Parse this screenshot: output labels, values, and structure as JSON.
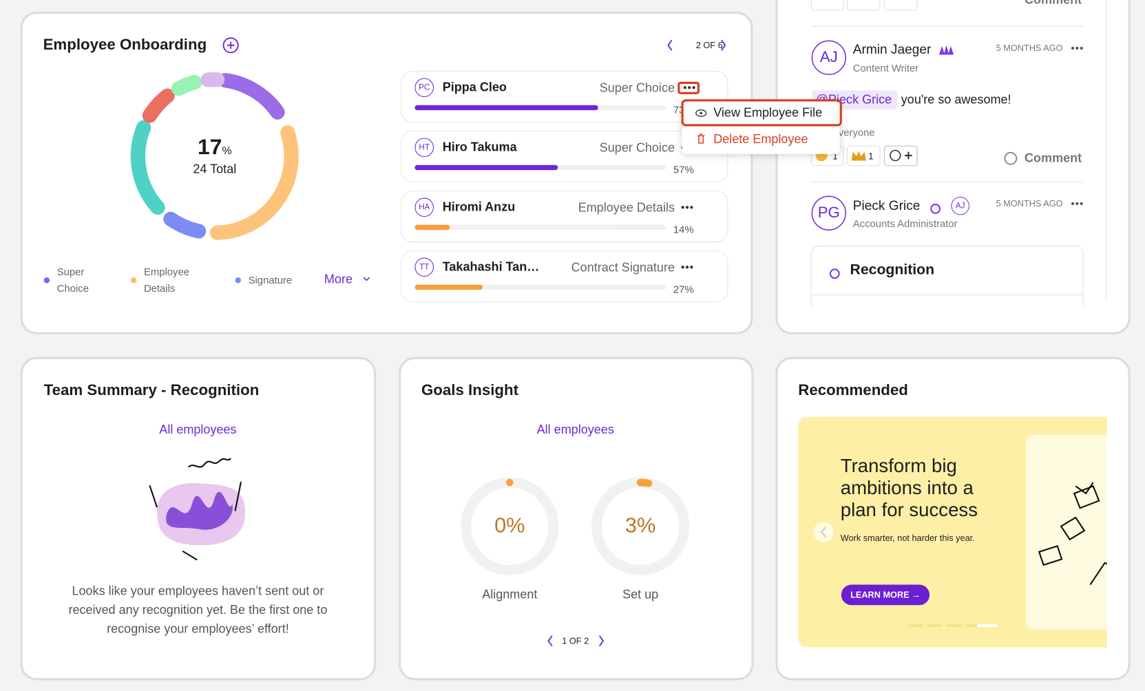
{
  "onboarding": {
    "title": "Employee Onboarding",
    "pager": "2 OF 6",
    "center_value": "17",
    "center_unit": "%",
    "center_caption": "24 Total",
    "legend": [
      {
        "label": "Super Choice",
        "color": "#8b5cf6"
      },
      {
        "label": "Employee Details",
        "color": "#fbbf6a"
      },
      {
        "label": "Signature",
        "color": "#7c8cf0"
      }
    ],
    "more": "More",
    "employees": [
      {
        "initials": "PC",
        "name": "Pippa Cleo",
        "stage": "Super Choice",
        "progress": "73%",
        "color": "#6d28d9"
      },
      {
        "initials": "HT",
        "name": "Hiro Takuma",
        "stage": "Super Choice",
        "progress": "57%",
        "color": "#6d28d9"
      },
      {
        "initials": "HA",
        "name": "Hiromi Anzu",
        "stage": "Employee Details",
        "progress": "14%",
        "color": "#f5a03c"
      },
      {
        "initials": "TT",
        "name": "Takahashi Tan…",
        "stage": "Contract Signature",
        "progress": "27%",
        "color": "#f5a03c"
      }
    ],
    "menu": [
      "View Employee File",
      "Delete Employee"
    ]
  },
  "feed": {
    "top_comment": "Comment",
    "post": {
      "initials": "AJ",
      "name": "Armin Jaeger",
      "role": "Content Writer",
      "time": "5 MONTHS AGO",
      "mention": "@Pieck Grice",
      "message": "you're so awesome!",
      "visibility": "Visible to everyone",
      "reactions": [
        "1",
        "1"
      ],
      "comment": "Comment"
    },
    "next": {
      "initials": "PG",
      "name": "Pieck Grice",
      "tag": "AJ",
      "role": "Accounts Administrator",
      "time": "5 MONTHS AGO"
    },
    "card_title": "Recognition"
  },
  "team_summary": {
    "title": "Team Summary - Recognition",
    "filter": "All employees",
    "message": "Looks like your employees haven’t sent out or received any recognition yet. Be the first one to recognise your employees’ effort!"
  },
  "goals": {
    "title": "Goals Insight",
    "filter": "All employees",
    "gauges": [
      {
        "value": "0%",
        "label": "Alignment"
      },
      {
        "value": "3%",
        "label": "Set up"
      }
    ],
    "pager": "1 OF 2"
  },
  "recommended": {
    "title": "Recommended",
    "headline": "Transform big ambitions into a plan for success",
    "subtext": "Work smarter, not harder this year.",
    "button": "LEARN MORE →"
  }
}
